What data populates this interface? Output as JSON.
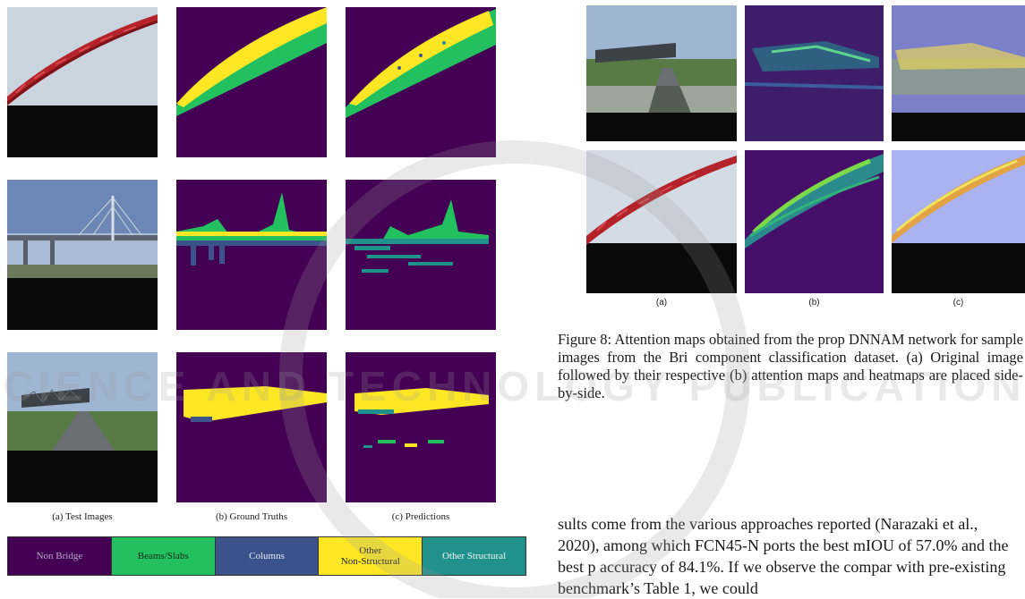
{
  "left_figure": {
    "captions": [
      "(a) Test Images",
      "(b) Ground Truths",
      "(c) Predictions"
    ],
    "legend": [
      {
        "label": "Non Bridge",
        "color": "#440154"
      },
      {
        "label": "Beams/Slabs",
        "color": "#22c05f"
      },
      {
        "label": "Columns",
        "color": "#3b528b"
      },
      {
        "label": "Other\nNon-Structural",
        "color": "#fde725"
      },
      {
        "label": "Other Structural",
        "color": "#21918c"
      }
    ]
  },
  "right_figure": {
    "captions": [
      "(a)",
      "(b)",
      "(c)"
    ],
    "caption_text": "Figure 8:  Attention maps obtained from the prop DNNAM network for sample images from the Bri component classification dataset.  (a) Original image followed by their respective (b) attention maps and heatmaps are placed side-by-side."
  },
  "body_text": "sults come from the various approaches reported (Narazaki et al., 2020), among which FCN45-N ports the best mIOU of 57.0% and the best p accuracy of 84.1%.  If we observe the compar with pre-existing benchmark’s Table 1, we could",
  "watermark": "SCIENCE AND TECHNOLOGY PUBLICATIONS"
}
